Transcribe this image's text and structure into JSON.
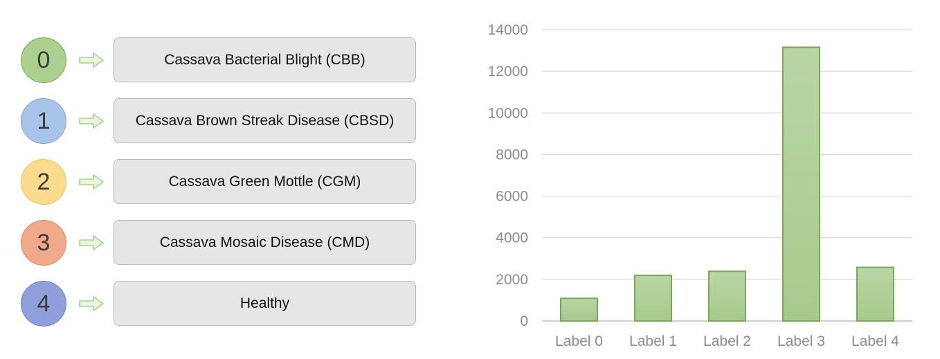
{
  "mapping": [
    {
      "number": "0",
      "label": "Cassava Bacterial Blight (CBB)",
      "fill": "#a9d08e",
      "border": "#7eb05e"
    },
    {
      "number": "1",
      "label": "Cassava Brown Streak Disease (CBSD)",
      "fill": "#a8c4e8",
      "border": "#7fa3d3"
    },
    {
      "number": "2",
      "label": "Cassava Green Mottle (CGM)",
      "fill": "#fbdc8f",
      "border": "#e8c25a"
    },
    {
      "number": "3",
      "label": "Cassava Mosaic Disease (CMD)",
      "fill": "#f0a98a",
      "border": "#d98b6a"
    },
    {
      "number": "4",
      "label": "Healthy",
      "fill": "#8e9fdc",
      "border": "#6f82c8"
    }
  ],
  "arrow_icon": "right-arrow-icon",
  "chart_data": {
    "type": "bar",
    "title": "",
    "xlabel": "",
    "ylabel": "",
    "categories": [
      "Label 0",
      "Label 1",
      "Label 2",
      "Label 3",
      "Label 4"
    ],
    "values": [
      1087,
      2189,
      2386,
      13158,
      2577
    ],
    "ylim": [
      0,
      14000
    ],
    "yticks": [
      0,
      2000,
      4000,
      6000,
      8000,
      10000,
      12000,
      14000
    ],
    "grid": true,
    "legend": "none",
    "bar_color_top": "#b9d6a5",
    "bar_color_bottom": "#a6ca8c",
    "bar_border": "#79a85a"
  }
}
